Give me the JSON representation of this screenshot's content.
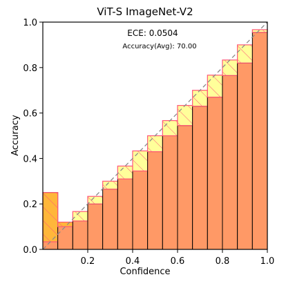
{
  "chart_data": {
    "type": "bar",
    "title": "ViT-S  ImageNet-V2",
    "xlabel": "Confidence",
    "ylabel": "Accuracy",
    "xlim": [
      0.0,
      1.0
    ],
    "ylim": [
      0.0,
      1.0
    ],
    "xticks": [
      "0.2",
      "0.4",
      "0.6",
      "0.8",
      "1.0"
    ],
    "yticks": [
      "0.0",
      "0.2",
      "0.4",
      "0.6",
      "0.8",
      "1.0"
    ],
    "annotations": [
      "ECE: 0.0504",
      "Accuracy(Avg): 70.00"
    ],
    "grid": false,
    "bin_width": 0.0667,
    "bins": [
      {
        "confidence": 0.0333,
        "accuracy": 0.25
      },
      {
        "confidence": 0.1,
        "accuracy": 0.12
      },
      {
        "confidence": 0.1667,
        "accuracy": 0.125
      },
      {
        "confidence": 0.2333,
        "accuracy": 0.2
      },
      {
        "confidence": 0.3,
        "accuracy": 0.265
      },
      {
        "confidence": 0.3667,
        "accuracy": 0.31
      },
      {
        "confidence": 0.4333,
        "accuracy": 0.345
      },
      {
        "confidence": 0.5,
        "accuracy": 0.43
      },
      {
        "confidence": 0.5667,
        "accuracy": 0.5
      },
      {
        "confidence": 0.6333,
        "accuracy": 0.545
      },
      {
        "confidence": 0.7,
        "accuracy": 0.63
      },
      {
        "confidence": 0.7667,
        "accuracy": 0.67
      },
      {
        "confidence": 0.8333,
        "accuracy": 0.765
      },
      {
        "confidence": 0.9,
        "accuracy": 0.82
      },
      {
        "confidence": 0.9667,
        "accuracy": 0.955
      }
    ],
    "colors": {
      "accuracy_bar": "#ff9966",
      "accuracy_edge": "#000000",
      "gap_over": "#ffff88",
      "gap_under": "#ffbb33",
      "gap_edge": "#ff5577",
      "diagonal": "#8a8a8a"
    }
  }
}
